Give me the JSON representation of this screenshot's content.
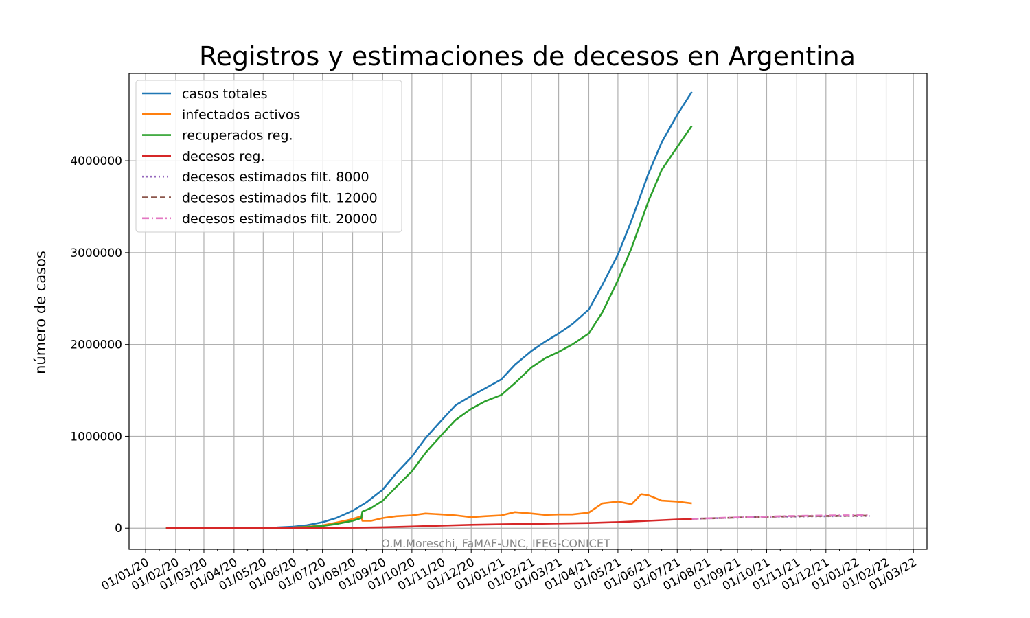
{
  "chart_data": {
    "type": "line",
    "title": "Registros y estimaciones de decesos en Argentina",
    "xlabel": "",
    "ylabel": "número de casos",
    "credit": "O.M.Moreschi, FaMAF-UNC, IFEG-CONICET",
    "ylim": [
      -230000,
      4950000
    ],
    "xlim": [
      "2019-12-15",
      "2022-03-15"
    ],
    "grid": true,
    "legend_position": "top-left",
    "y_ticks": [
      0,
      1000000,
      2000000,
      3000000,
      4000000
    ],
    "y_tick_labels": [
      "0",
      "1000000",
      "2000000",
      "3000000",
      "4000000"
    ],
    "x_ticks": [
      "2020-01-01",
      "2020-02-01",
      "2020-03-01",
      "2020-04-01",
      "2020-05-01",
      "2020-06-01",
      "2020-07-01",
      "2020-08-01",
      "2020-09-01",
      "2020-10-01",
      "2020-11-01",
      "2020-12-01",
      "2021-01-01",
      "2021-02-01",
      "2021-03-01",
      "2021-04-01",
      "2021-05-01",
      "2021-06-01",
      "2021-07-01",
      "2021-08-01",
      "2021-09-01",
      "2021-10-01",
      "2021-11-01",
      "2021-12-01",
      "2022-01-01",
      "2022-02-01",
      "2022-03-01"
    ],
    "x_tick_labels": [
      "01/01/20",
      "01/02/20",
      "01/03/20",
      "01/04/20",
      "01/05/20",
      "01/06/20",
      "01/07/20",
      "01/08/20",
      "01/09/20",
      "01/10/20",
      "01/11/20",
      "01/12/20",
      "01/01/21",
      "01/02/21",
      "01/03/21",
      "01/04/21",
      "01/05/21",
      "01/06/21",
      "01/07/21",
      "01/08/21",
      "01/09/21",
      "01/10/21",
      "01/11/21",
      "01/12/21",
      "01/01/22",
      "01/02/22",
      "01/03/22"
    ],
    "series": [
      {
        "name": "casos totales",
        "color": "#1f77b4",
        "style": "solid",
        "x": [
          "2020-01-22",
          "2020-03-15",
          "2020-04-15",
          "2020-05-15",
          "2020-06-01",
          "2020-06-15",
          "2020-07-01",
          "2020-07-15",
          "2020-08-01",
          "2020-08-15",
          "2020-09-01",
          "2020-09-15",
          "2020-10-01",
          "2020-10-15",
          "2020-11-01",
          "2020-11-15",
          "2020-12-01",
          "2020-12-15",
          "2021-01-01",
          "2021-01-15",
          "2021-02-01",
          "2021-02-15",
          "2021-03-01",
          "2021-03-15",
          "2021-04-01",
          "2021-04-15",
          "2021-05-01",
          "2021-05-15",
          "2021-06-01",
          "2021-06-15",
          "2021-07-01",
          "2021-07-16"
        ],
        "values": [
          0,
          300,
          3000,
          8000,
          17000,
          32000,
          65000,
          110000,
          190000,
          280000,
          420000,
          600000,
          780000,
          980000,
          1180000,
          1340000,
          1440000,
          1520000,
          1620000,
          1780000,
          1930000,
          2030000,
          2120000,
          2220000,
          2380000,
          2650000,
          2980000,
          3350000,
          3850000,
          4200000,
          4500000,
          4750000
        ]
      },
      {
        "name": "infectados activos",
        "color": "#ff7f0e",
        "style": "solid",
        "x": [
          "2020-01-22",
          "2020-03-15",
          "2020-04-15",
          "2020-05-15",
          "2020-06-01",
          "2020-06-15",
          "2020-07-01",
          "2020-07-15",
          "2020-08-01",
          "2020-08-10",
          "2020-08-11",
          "2020-08-20",
          "2020-09-01",
          "2020-09-15",
          "2020-10-01",
          "2020-10-15",
          "2020-11-01",
          "2020-11-15",
          "2020-12-01",
          "2020-12-15",
          "2021-01-01",
          "2021-01-15",
          "2021-02-01",
          "2021-02-15",
          "2021-03-01",
          "2021-03-15",
          "2021-04-01",
          "2021-04-15",
          "2021-05-01",
          "2021-05-15",
          "2021-05-25",
          "2021-06-01",
          "2021-06-15",
          "2021-07-01",
          "2021-07-16"
        ],
        "values": [
          0,
          200,
          1500,
          4000,
          8000,
          15000,
          30000,
          60000,
          100000,
          130000,
          80000,
          80000,
          110000,
          130000,
          140000,
          160000,
          150000,
          140000,
          120000,
          130000,
          140000,
          175000,
          160000,
          145000,
          150000,
          150000,
          170000,
          270000,
          290000,
          260000,
          370000,
          360000,
          300000,
          290000,
          270000
        ]
      },
      {
        "name": "recuperados reg.",
        "color": "#2ca02c",
        "style": "solid",
        "x": [
          "2020-01-22",
          "2020-03-15",
          "2020-04-15",
          "2020-05-15",
          "2020-06-01",
          "2020-06-15",
          "2020-07-01",
          "2020-07-15",
          "2020-08-01",
          "2020-08-10",
          "2020-08-11",
          "2020-08-20",
          "2020-09-01",
          "2020-09-15",
          "2020-10-01",
          "2020-10-15",
          "2020-11-01",
          "2020-11-15",
          "2020-12-01",
          "2020-12-15",
          "2021-01-01",
          "2021-01-15",
          "2021-02-01",
          "2021-02-15",
          "2021-03-01",
          "2021-03-15",
          "2021-04-01",
          "2021-04-15",
          "2021-05-01",
          "2021-05-15",
          "2021-06-01",
          "2021-06-15",
          "2021-07-01",
          "2021-07-16"
        ],
        "values": [
          0,
          100,
          1000,
          3000,
          6000,
          12000,
          25000,
          45000,
          80000,
          110000,
          180000,
          220000,
          300000,
          450000,
          620000,
          820000,
          1020000,
          1180000,
          1300000,
          1380000,
          1450000,
          1580000,
          1750000,
          1850000,
          1920000,
          2000000,
          2120000,
          2350000,
          2700000,
          3050000,
          3550000,
          3900000,
          4150000,
          4380000
        ]
      },
      {
        "name": "decesos reg.",
        "color": "#d62728",
        "style": "solid",
        "x": [
          "2020-01-22",
          "2020-05-01",
          "2020-06-15",
          "2020-08-01",
          "2020-09-01",
          "2020-10-01",
          "2020-11-01",
          "2020-12-01",
          "2021-01-01",
          "2021-02-01",
          "2021-03-01",
          "2021-04-01",
          "2021-05-01",
          "2021-06-01",
          "2021-07-01",
          "2021-07-16"
        ],
        "values": [
          0,
          500,
          2000,
          5000,
          10000,
          18000,
          28000,
          37000,
          42000,
          47000,
          52000,
          56000,
          66000,
          80000,
          95000,
          100000
        ]
      },
      {
        "name": "decesos estimados filt. 8000",
        "color": "#9467bd",
        "style": "dotted",
        "x": [
          "2021-07-16",
          "2021-08-15",
          "2021-09-15",
          "2021-10-15",
          "2021-11-15",
          "2021-12-15",
          "2022-01-15"
        ],
        "values": [
          102000,
          110000,
          118000,
          124000,
          128000,
          131000,
          133000
        ]
      },
      {
        "name": "decesos estimados filt. 12000",
        "color": "#8c564b",
        "style": "dashed",
        "x": [
          "2021-07-16",
          "2021-08-15",
          "2021-09-15",
          "2021-10-15",
          "2021-11-15",
          "2021-12-15",
          "2022-01-15"
        ],
        "values": [
          102000,
          111000,
          120000,
          127000,
          132000,
          135000,
          137000
        ]
      },
      {
        "name": "decesos estimados filt. 20000",
        "color": "#e377c2",
        "style": "dashdot",
        "x": [
          "2021-07-16",
          "2021-08-15",
          "2021-09-15",
          "2021-10-15",
          "2021-11-15",
          "2021-12-15",
          "2022-01-15"
        ],
        "values": [
          102000,
          112000,
          122000,
          130000,
          136000,
          140000,
          143000
        ]
      }
    ]
  }
}
